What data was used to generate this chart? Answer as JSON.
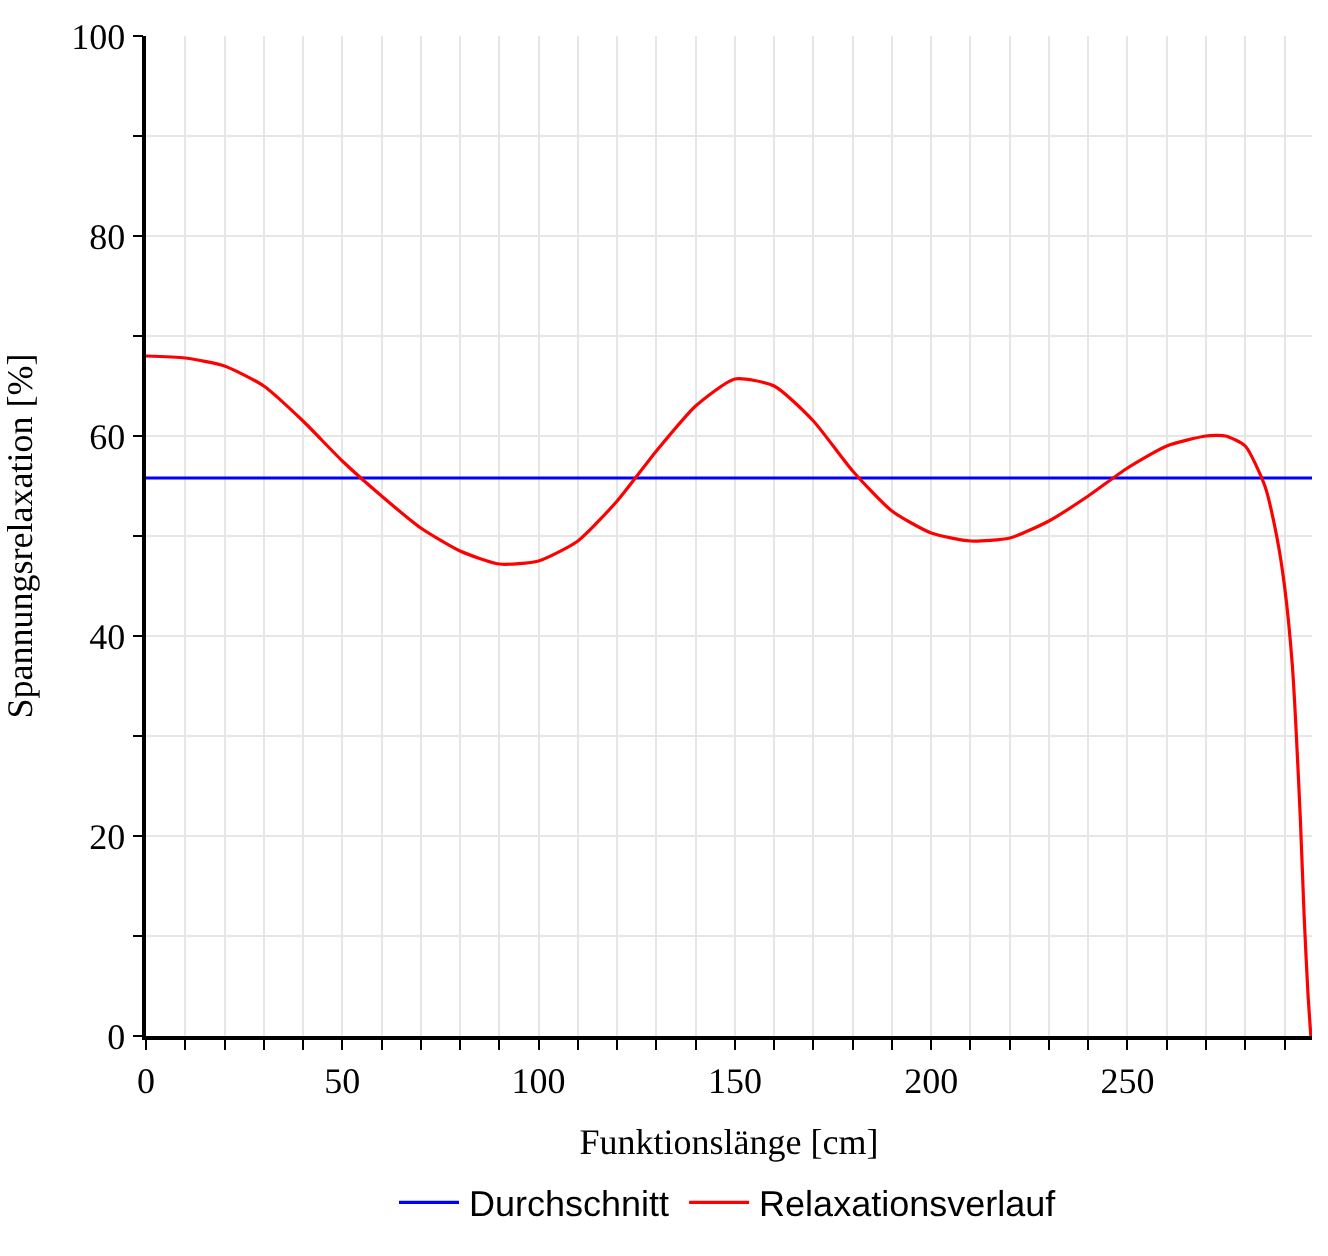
{
  "chart_data": {
    "type": "line",
    "xlabel": "Funktionslänge [cm]",
    "ylabel": "Spannungsrelaxation [%]",
    "xlim": [
      0,
      297
    ],
    "ylim": [
      0,
      100
    ],
    "xticks": [
      0,
      {
        "value": 10,
        "label": null
      },
      {
        "value": 20,
        "label": null
      },
      {
        "value": 30,
        "label": null
      },
      {
        "value": 40,
        "label": null
      },
      50,
      {
        "value": 60,
        "label": null
      },
      {
        "value": 70,
        "label": null
      },
      {
        "value": 80,
        "label": null
      },
      {
        "value": 90,
        "label": null
      },
      100,
      {
        "value": 110,
        "label": null
      },
      {
        "value": 120,
        "label": null
      },
      {
        "value": 130,
        "label": null
      },
      {
        "value": 140,
        "label": null
      },
      150,
      {
        "value": 160,
        "label": null
      },
      {
        "value": 170,
        "label": null
      },
      {
        "value": 180,
        "label": null
      },
      {
        "value": 190,
        "label": null
      },
      200,
      {
        "value": 210,
        "label": null
      },
      {
        "value": 220,
        "label": null
      },
      {
        "value": 230,
        "label": null
      },
      {
        "value": 240,
        "label": null
      },
      250,
      {
        "value": 260,
        "label": null
      },
      {
        "value": 270,
        "label": null
      },
      {
        "value": 280,
        "label": null
      },
      {
        "value": 290,
        "label": null
      }
    ],
    "yticks": [
      0,
      {
        "value": 10,
        "label": null
      },
      20,
      {
        "value": 30,
        "label": null
      },
      40,
      {
        "value": 50,
        "label": null
      },
      60,
      {
        "value": 70,
        "label": null
      },
      80,
      {
        "value": 90,
        "label": null
      },
      100
    ],
    "grid": true,
    "legend": "bottom",
    "marker": "none",
    "line_style": "solid",
    "series": [
      {
        "name": "Durchschnitt",
        "color": "#0000ff",
        "x": [
          0,
          297
        ],
        "values": [
          55.8,
          55.8
        ]
      },
      {
        "name": "Relaxationsverlauf",
        "color": "#ff0000",
        "x": [
          0,
          10,
          20,
          30,
          40,
          50,
          60,
          70,
          80,
          90,
          100,
          110,
          120,
          130,
          140,
          150,
          160,
          170,
          180,
          190,
          200,
          210,
          220,
          230,
          240,
          250,
          260,
          270,
          275,
          280,
          285,
          288,
          290,
          292,
          294,
          295,
          296,
          296.7
        ],
        "values": [
          68,
          67.8,
          67,
          65,
          61.5,
          57.5,
          54,
          50.8,
          48.5,
          47.2,
          47.5,
          49.5,
          53.5,
          58.5,
          63,
          65.7,
          65,
          61.5,
          56.5,
          52.5,
          50.3,
          49.5,
          49.8,
          51.5,
          54,
          56.8,
          59,
          60,
          60,
          59,
          55,
          50,
          45,
          37,
          22,
          12,
          4,
          0
        ]
      }
    ]
  }
}
